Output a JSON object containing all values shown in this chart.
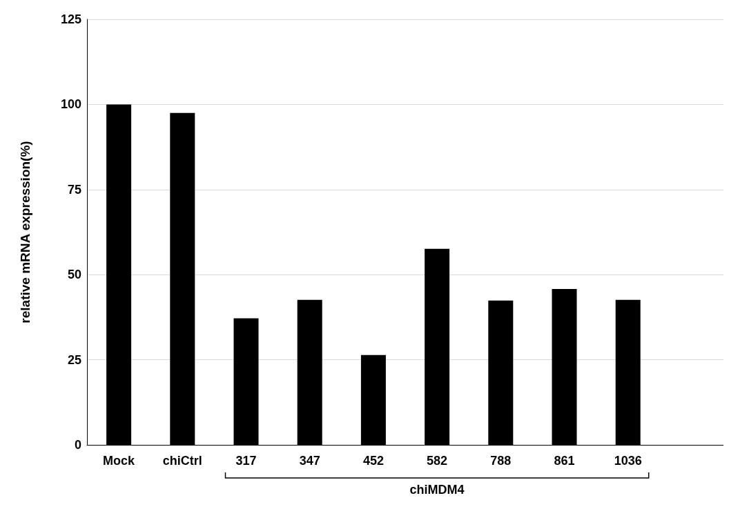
{
  "chart_data": {
    "type": "bar",
    "ylabel": "relative mRNA expression(%)",
    "categories": [
      "Mock",
      "chiCtrl",
      "317",
      "347",
      "452",
      "582",
      "788",
      "861",
      "1036",
      null
    ],
    "values": [
      100,
      97.5,
      37.2,
      42.6,
      26.4,
      57.6,
      42.4,
      45.8,
      42.6,
      null
    ],
    "color": "#000000",
    "ylim": [
      0,
      125
    ],
    "yticks": [
      0,
      25,
      50,
      75,
      100,
      125
    ],
    "grid": "y",
    "annotations": [
      "chiMDM4"
    ]
  }
}
